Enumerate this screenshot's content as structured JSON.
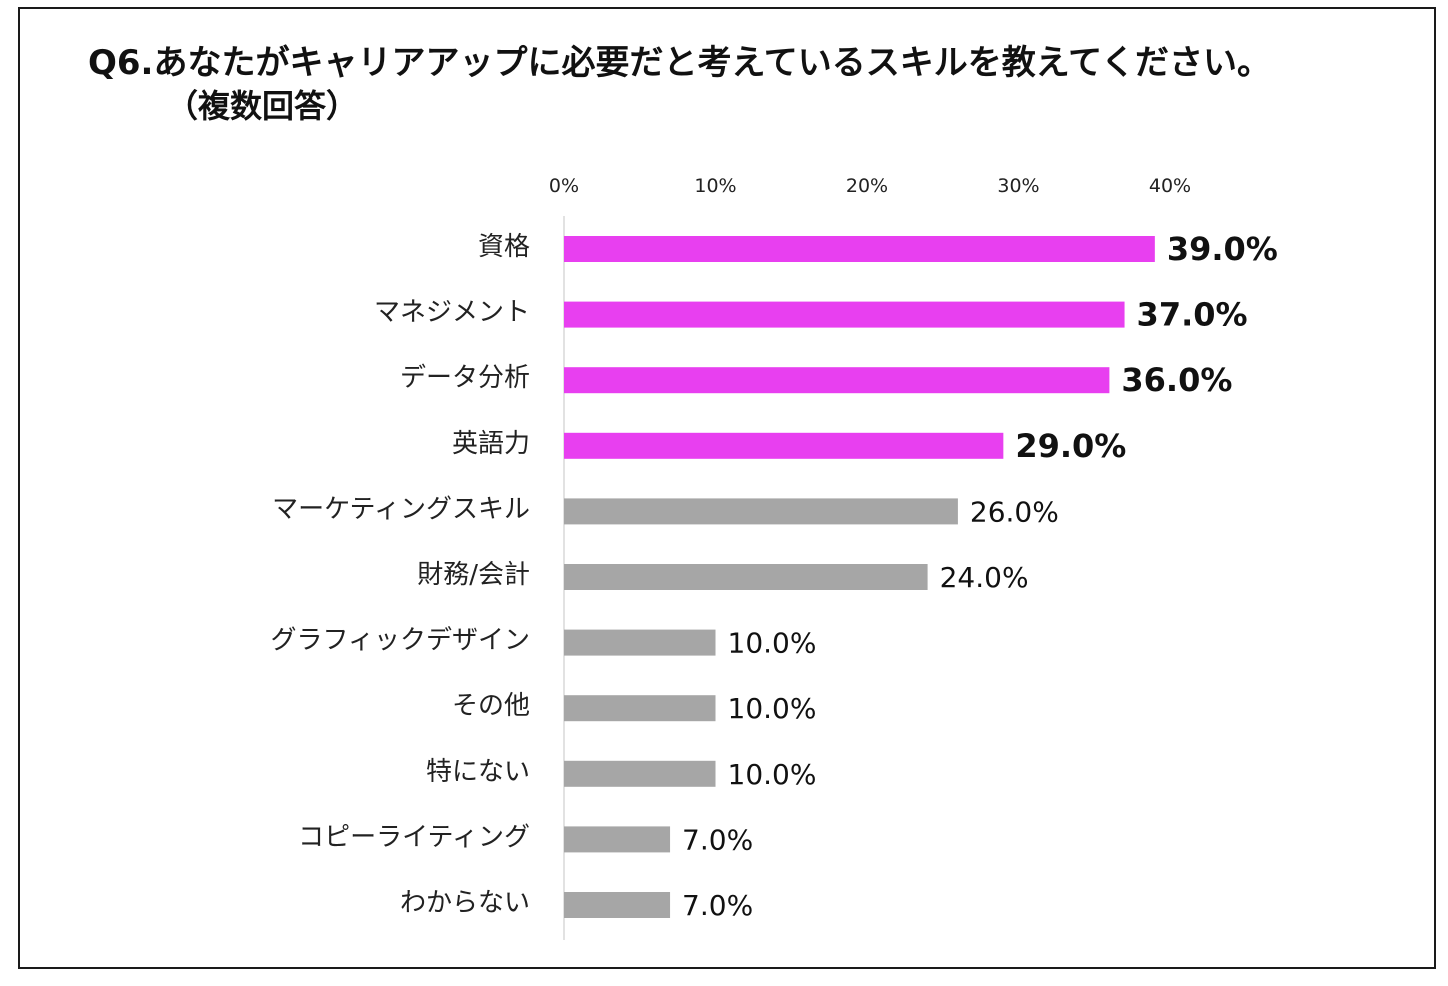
{
  "header": {
    "title": "Q6.あなたがキャリアアップに必要だと考えているスキルを教えてください。",
    "subtitle": "（複数回答）"
  },
  "chart_data": {
    "type": "bar",
    "orientation": "horizontal",
    "categories": [
      "資格",
      "マネジメント",
      "データ分析",
      "英語力",
      "マーケティングスキル",
      "財務/会計",
      "グラフィックデザイン",
      "その他",
      "特にない",
      "コピーライティング",
      "わからない"
    ],
    "values": [
      39.0,
      37.0,
      36.0,
      29.0,
      26.0,
      24.0,
      10.0,
      10.0,
      10.0,
      7.0,
      7.0
    ],
    "value_labels": [
      "39.0%",
      "37.0%",
      "36.0%",
      "29.0%",
      "26.0%",
      "24.0%",
      "10.0%",
      "10.0%",
      "10.0%",
      "7.0%",
      "7.0%"
    ],
    "highlighted": [
      true,
      true,
      true,
      true,
      false,
      false,
      false,
      false,
      false,
      false,
      false
    ],
    "x_ticks": [
      "0%",
      "10%",
      "20%",
      "30%",
      "40%"
    ],
    "xlim": [
      0,
      40
    ],
    "axis_position": "top",
    "grid": false,
    "colors": {
      "highlight": "#e83ff0",
      "default": "#a6a6a6",
      "axis": "#d9d9d9"
    }
  }
}
